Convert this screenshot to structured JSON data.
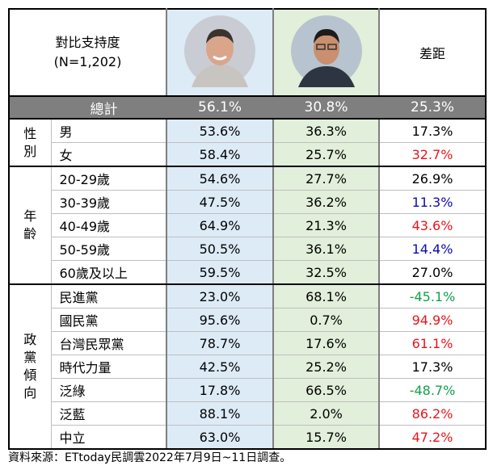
{
  "header": {
    "title": "對比支持度",
    "sample": "(N=1,202)",
    "diff": "差距"
  },
  "total": {
    "label": "總計",
    "values": [
      "56.1%",
      "30.8%",
      "25.3%"
    ]
  },
  "groups": [
    {
      "name": "性別",
      "rows": [
        {
          "label": "男",
          "values": [
            "53.6%",
            "36.3%",
            "17.3%"
          ],
          "color": "#000000"
        },
        {
          "label": "女",
          "values": [
            "58.4%",
            "25.7%",
            "32.7%"
          ],
          "color": "#e8141b"
        }
      ]
    },
    {
      "name": "年齡",
      "rows": [
        {
          "label": "20-29歲",
          "values": [
            "54.6%",
            "27.7%",
            "26.9%"
          ],
          "color": "#000000"
        },
        {
          "label": "30-39歲",
          "values": [
            "47.5%",
            "36.2%",
            "11.3%"
          ],
          "color": "#0a0ab4"
        },
        {
          "label": "40-49歲",
          "values": [
            "64.9%",
            "21.3%",
            "43.6%"
          ],
          "color": "#e8141b"
        },
        {
          "label": "50-59歲",
          "values": [
            "50.5%",
            "36.1%",
            "14.4%"
          ],
          "color": "#0a0ab4"
        },
        {
          "label": "60歲及以上",
          "values": [
            "59.5%",
            "32.5%",
            "27.0%"
          ],
          "color": "#000000"
        }
      ]
    },
    {
      "name": "政黨傾向",
      "rows": [
        {
          "label": "民進黨",
          "values": [
            "23.0%",
            "68.1%",
            "-45.1%"
          ],
          "color": "#13a04a"
        },
        {
          "label": "國民黨",
          "values": [
            "95.6%",
            "0.7%",
            "94.9%"
          ],
          "color": "#e8141b"
        },
        {
          "label": "台灣民眾黨",
          "values": [
            "78.7%",
            "17.6%",
            "61.1%"
          ],
          "color": "#e8141b"
        },
        {
          "label": "時代力量",
          "values": [
            "42.5%",
            "25.2%",
            "17.3%"
          ],
          "color": "#000000"
        },
        {
          "label": "泛綠",
          "values": [
            "17.8%",
            "66.5%",
            "-48.7%"
          ],
          "color": "#13a04a"
        },
        {
          "label": "泛藍",
          "values": [
            "88.1%",
            "2.0%",
            "86.2%"
          ],
          "color": "#e8141b"
        },
        {
          "label": "中立",
          "values": [
            "63.0%",
            "15.7%",
            "47.2%"
          ],
          "color": "#e8141b"
        }
      ]
    }
  ],
  "source": "資料來源：ETtoday民調雲2022年7月9日~11日調查。"
}
